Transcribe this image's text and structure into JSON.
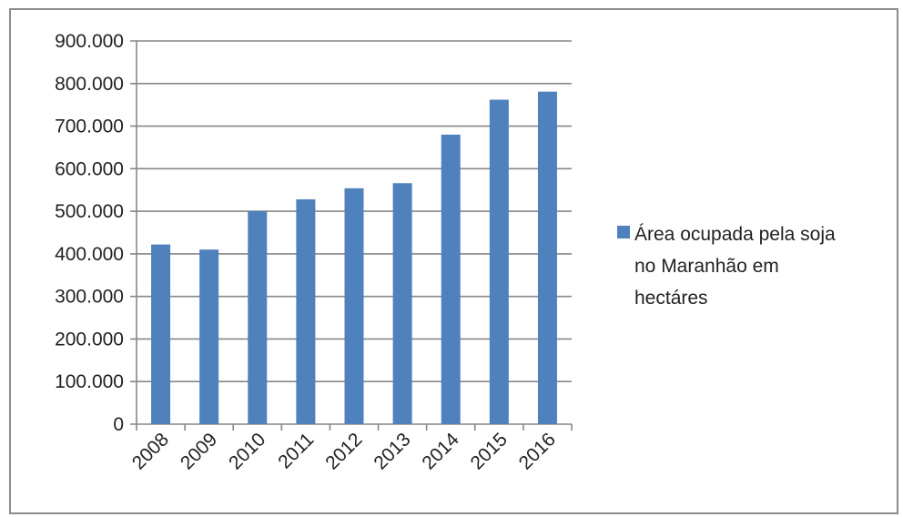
{
  "chart_data": {
    "type": "bar",
    "categories": [
      "2008",
      "2009",
      "2010",
      "2011",
      "2012",
      "2013",
      "2014",
      "2015",
      "2016"
    ],
    "series": [
      {
        "name": "Área ocupada pela soja no Maranhão em hectáres",
        "values": [
          422000,
          410000,
          500000,
          528000,
          554000,
          566000,
          680000,
          762000,
          781000
        ],
        "color": "#4f81bd"
      }
    ],
    "y_ticks": [
      "0",
      "100.000",
      "200.000",
      "300.000",
      "400.000",
      "500.000",
      "600.000",
      "700.000",
      "800.000",
      "900.000"
    ],
    "ylim": [
      0,
      900000
    ],
    "grid": true,
    "legend_position": "right",
    "legend_lines": [
      "Área ocupada pela soja",
      "no Maranhão em",
      "hectáres"
    ],
    "title": "",
    "xlabel": "",
    "ylabel": ""
  },
  "colors": {
    "bar": "#4f81bd",
    "grid": "#878787",
    "frame": "#8c8c8c"
  }
}
